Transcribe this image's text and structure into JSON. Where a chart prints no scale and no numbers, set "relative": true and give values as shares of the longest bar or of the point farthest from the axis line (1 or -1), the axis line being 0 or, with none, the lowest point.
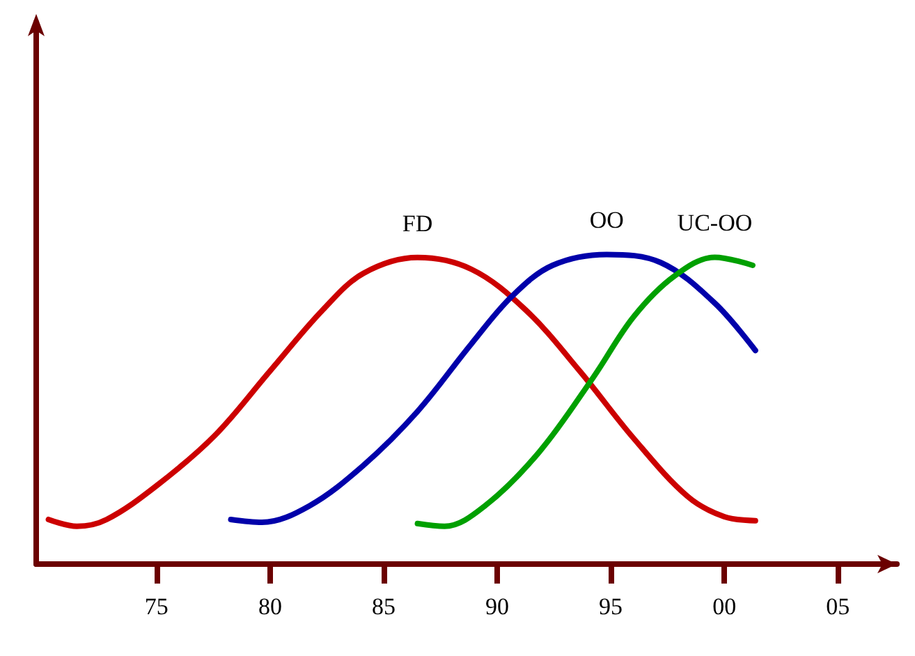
{
  "chart_data": {
    "type": "line",
    "relative": true,
    "xlim": [
      1969.7,
      2007.6
    ],
    "xticks": [
      {
        "value": 1975,
        "label": "75"
      },
      {
        "value": 1980,
        "label": "80"
      },
      {
        "value": 1985,
        "label": "85"
      },
      {
        "value": 1990,
        "label": "90"
      },
      {
        "value": 1995,
        "label": "95"
      },
      {
        "value": 2000,
        "label": "00"
      },
      {
        "value": 2005,
        "label": "05"
      }
    ],
    "tick_labels": "x",
    "grid": false,
    "legend": false,
    "marker": "none",
    "line_style": "solid",
    "series": [
      {
        "name": "FD",
        "color": "#cc0000",
        "x": [
          1970.24,
          1971.49,
          1972.8,
          1975,
          1977.56,
          1980,
          1982.32,
          1984.11,
          1986.49,
          1988.87,
          1991.25,
          1993.63,
          1996.01,
          1998.39,
          2000,
          2001.37
        ],
        "values": [
          0.144,
          0.122,
          0.144,
          0.253,
          0.415,
          0.624,
          0.821,
          0.939,
          0.99,
          0.952,
          0.821,
          0.624,
          0.406,
          0.218,
          0.153,
          0.14
        ]
      },
      {
        "name": "OO",
        "color": "#0000aa",
        "x": [
          1978.27,
          1979.64,
          1981.73,
          1984.11,
          1986.49,
          1988.87,
          1990.65,
          1992.44,
          1994.82,
          1997.2,
          1999.58,
          2001.37
        ],
        "values": [
          0.144,
          0.135,
          0.188,
          0.319,
          0.493,
          0.712,
          0.865,
          0.965,
          1,
          0.974,
          0.843,
          0.69
        ]
      },
      {
        "name": "UC-OO",
        "color": "#00a000",
        "x": [
          1986.49,
          1987.68,
          1989.46,
          1991.85,
          1994.23,
          1996.01,
          1997.8,
          1999.58,
          2001.25
        ],
        "values": [
          0.131,
          0.122,
          0.188,
          0.362,
          0.603,
          0.799,
          0.93,
          0.991,
          0.965
        ]
      }
    ]
  }
}
